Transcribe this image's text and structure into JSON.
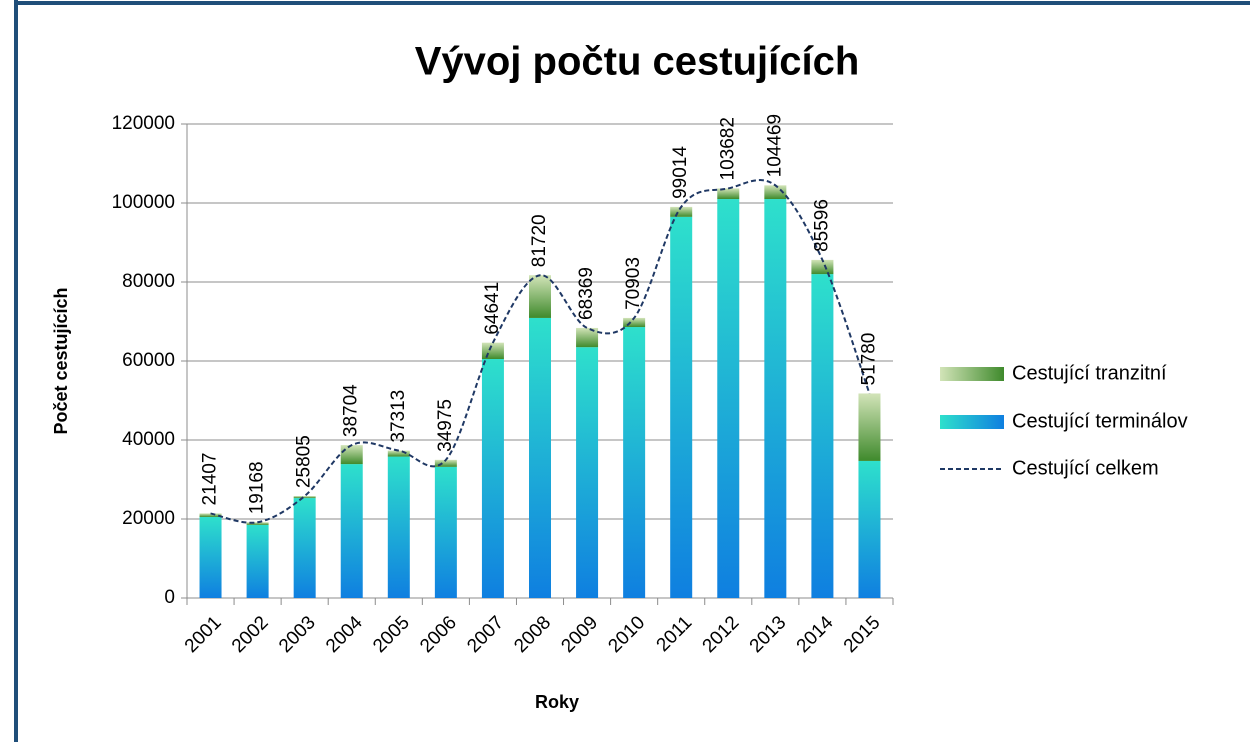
{
  "chart_data": {
    "type": "bar",
    "title": "Vývoj počtu cestujících",
    "x_label": "Roky",
    "y_label": "Počet cestujících",
    "categories": [
      "2001",
      "2002",
      "2003",
      "2004",
      "2005",
      "2006",
      "2007",
      "2008",
      "2009",
      "2010",
      "2011",
      "2012",
      "2013",
      "2014",
      "2015"
    ],
    "series": [
      {
        "name": "Cestující tranzitní",
        "type": "bar",
        "color": "#3f8a2c",
        "values": [
          907,
          668,
          505,
          4804,
          1513,
          1775,
          4141,
          10820,
          4869,
          2303,
          2514,
          2682,
          3469,
          3596,
          17080
        ]
      },
      {
        "name": "Cestující terminálov",
        "type": "bar",
        "color": "#0f7fe0",
        "values": [
          20500,
          18500,
          25300,
          33900,
          35800,
          33200,
          60500,
          70900,
          63500,
          68600,
          96500,
          101000,
          101000,
          82000,
          34700
        ]
      },
      {
        "name": "Cestující celkem",
        "type": "line",
        "color": "#1f3864",
        "values": [
          21407,
          19168,
          25805,
          38704,
          37313,
          34975,
          64641,
          81720,
          68369,
          70903,
          99014,
          103682,
          104469,
          85596,
          51780
        ]
      }
    ],
    "ylim": [
      0,
      120000
    ],
    "yticks": [
      0,
      20000,
      40000,
      60000,
      80000,
      100000,
      120000
    ],
    "grid": true,
    "stacked": true,
    "legend": "right"
  }
}
